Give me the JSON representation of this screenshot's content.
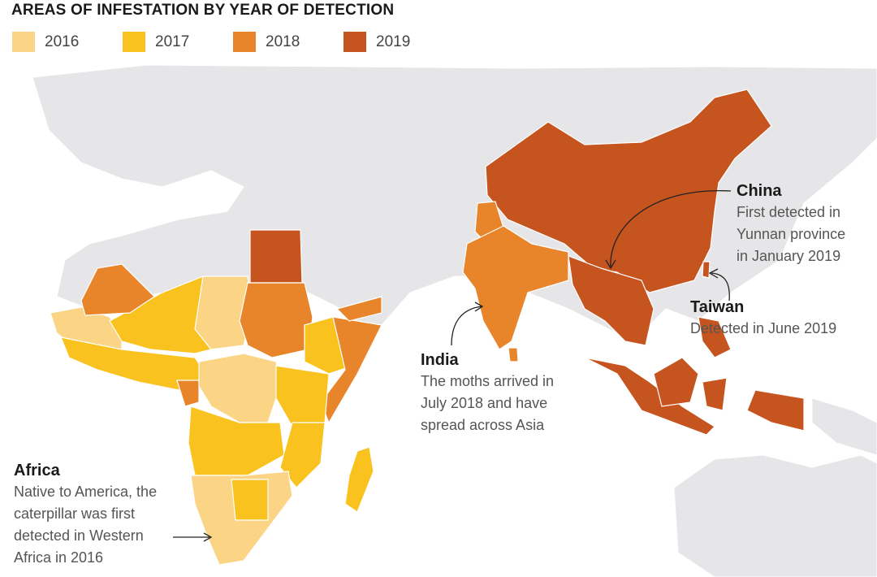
{
  "title": "AREAS OF INFESTATION BY YEAR OF DETECTION",
  "legend": [
    {
      "label": "2016",
      "color": "#fbd486"
    },
    {
      "label": "2017",
      "color": "#f9c21f"
    },
    {
      "label": "2018",
      "color": "#e8852b"
    },
    {
      "label": "2019",
      "color": "#c6541f"
    }
  ],
  "colors": {
    "land": "#e6e6e8",
    "ocean": "#ffffff",
    "border": "#ffffff",
    "annotation_line": "#222222"
  },
  "annotations": {
    "china": {
      "head": "China",
      "lines": [
        "First detected in",
        "Yunnan province",
        "in January 2019"
      ]
    },
    "taiwan": {
      "head": "Taiwan",
      "lines": [
        "Detected in June 2019"
      ]
    },
    "india": {
      "head": "India",
      "lines": [
        "The moths arrived in",
        "July 2018 and have",
        "spread across Asia"
      ]
    },
    "africa": {
      "head": "Africa",
      "lines": [
        "Native to America, the",
        "caterpillar was first",
        "detected in Western",
        "Africa in 2016"
      ]
    }
  }
}
